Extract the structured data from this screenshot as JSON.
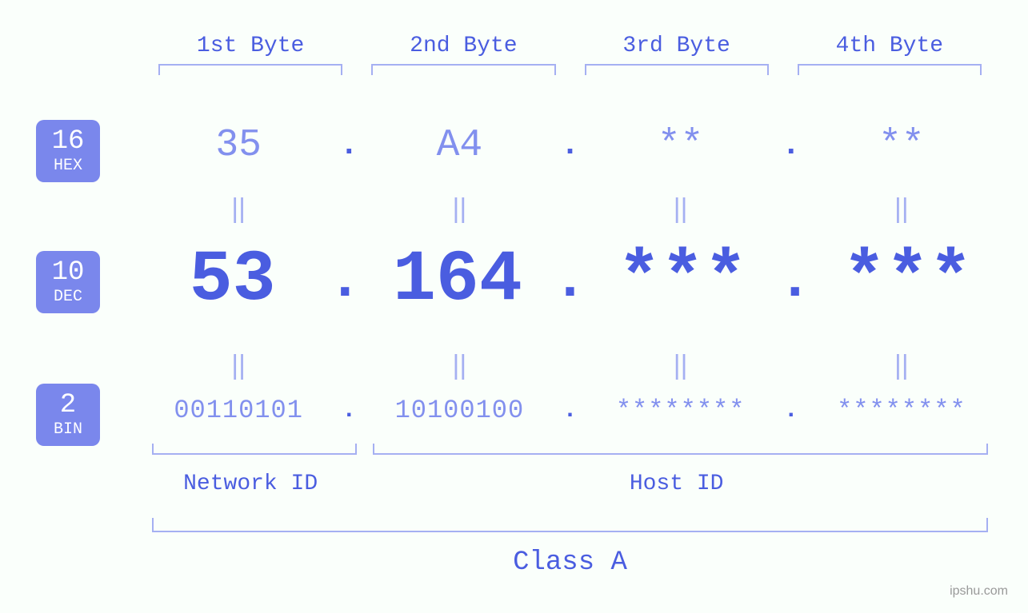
{
  "type": "infographic",
  "subject": "IP address byte breakdown in hex/dec/bin with class and network/host ID",
  "colors": {
    "background": "#fafffb",
    "primary_text": "#4a5de0",
    "secondary_text": "#8290ee",
    "bracket": "#a5b0f2",
    "badge_bg": "#7a87ec",
    "badge_fg": "#ffffff",
    "watermark": "#999999"
  },
  "typography": {
    "font_family": "Courier New, monospace",
    "byte_header_fontsize": 28,
    "hex_fontsize": 48,
    "dec_fontsize": 90,
    "bin_fontsize": 32,
    "eq_fontsize": 34,
    "id_label_fontsize": 28,
    "class_label_fontsize": 34,
    "badge_num_fontsize": 34,
    "badge_lbl_fontsize": 20
  },
  "byte_headers": [
    "1st Byte",
    "2nd Byte",
    "3rd Byte",
    "4th Byte"
  ],
  "badges": {
    "hex": {
      "base": "16",
      "label": "HEX"
    },
    "dec": {
      "base": "10",
      "label": "DEC"
    },
    "bin": {
      "base": "2",
      "label": "BIN"
    }
  },
  "hex": [
    "35",
    "A4",
    "**",
    "**"
  ],
  "dec": [
    "53",
    "164",
    "***",
    "***"
  ],
  "bin": [
    "00110101",
    "10100100",
    "********",
    "********"
  ],
  "dot": ".",
  "eq": "||",
  "network_id_label": "Network ID",
  "host_id_label": "Host ID",
  "class_label": "Class A",
  "network_id_bytes": 1,
  "host_id_bytes": 3,
  "watermark": "ipshu.com"
}
